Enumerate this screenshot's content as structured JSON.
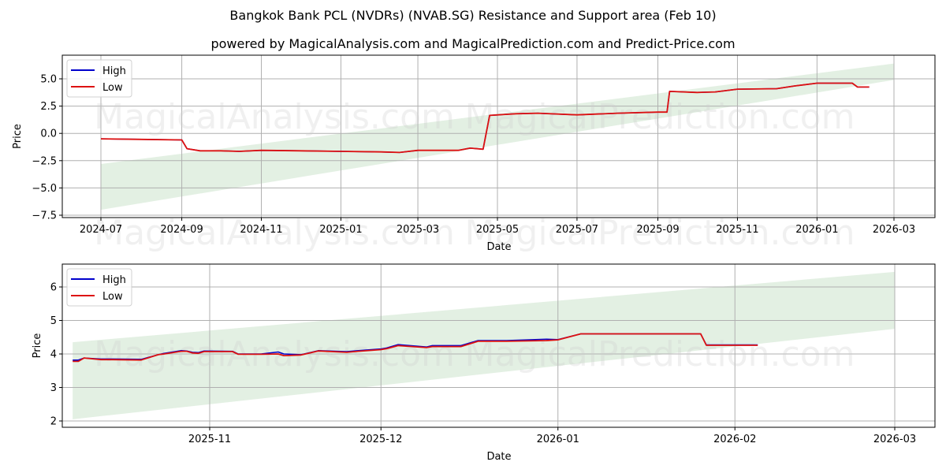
{
  "header": {
    "title": "Bangkok Bank PCL (NVDRs) (NVAB.SG) Resistance and Support area (Feb 10)",
    "subtitle": "powered by MagicalAnalysis.com and MagicalPrediction.com and Predict-Price.com"
  },
  "watermarks": [
    "MagicalAnalysis.com",
    "MagicalPrediction.com"
  ],
  "colors": {
    "high": "#0000cc",
    "low": "#dd1111",
    "band": "#d7ead7",
    "grid": "#b0b0b0"
  },
  "legend": {
    "high": "High",
    "low": "Low"
  },
  "chart_data": [
    {
      "type": "line",
      "title": "Bangkok Bank PCL (NVDRs) (NVAB.SG) Resistance and Support area (Feb 10)",
      "xlabel": "Date",
      "ylabel": "Price",
      "ylim": [
        -7.8,
        6.8
      ],
      "yticks": [
        "5.0",
        "2.5",
        "0.0",
        "−2.5",
        "−5.0",
        "−7.5"
      ],
      "xticks": [
        "2024-07",
        "2024-09",
        "2024-11",
        "2025-01",
        "2025-03",
        "2025-05",
        "2025-07",
        "2025-09",
        "2025-11",
        "2026-01",
        "2026-03"
      ],
      "grid": true,
      "legend_position": "upper left",
      "x": [
        "2024-07-01",
        "2024-08-01",
        "2024-09-01",
        "2024-09-05",
        "2024-09-15",
        "2024-10-01",
        "2024-10-15",
        "2024-11-01",
        "2024-12-01",
        "2025-01-01",
        "2025-02-01",
        "2025-02-15",
        "2025-03-01",
        "2025-04-01",
        "2025-04-10",
        "2025-04-20",
        "2025-04-25",
        "2025-05-15",
        "2025-06-01",
        "2025-07-01",
        "2025-08-01",
        "2025-09-01",
        "2025-09-08",
        "2025-09-10",
        "2025-10-01",
        "2025-10-15",
        "2025-11-01",
        "2025-12-01",
        "2025-12-15",
        "2026-01-01",
        "2026-01-28",
        "2026-02-01",
        "2026-02-10"
      ],
      "series": [
        {
          "name": "High",
          "values": [
            -0.5,
            -0.55,
            -0.6,
            -1.4,
            -1.6,
            -1.6,
            -1.65,
            -1.55,
            -1.6,
            -1.65,
            -1.7,
            -1.75,
            -1.55,
            -1.55,
            -1.35,
            -1.45,
            1.65,
            1.8,
            1.85,
            1.7,
            1.85,
            1.95,
            1.95,
            3.85,
            3.75,
            3.8,
            4.05,
            4.1,
            4.35,
            4.6,
            4.6,
            4.25,
            4.25
          ]
        },
        {
          "name": "Low",
          "values": [
            -0.5,
            -0.55,
            -0.6,
            -1.4,
            -1.6,
            -1.6,
            -1.65,
            -1.55,
            -1.6,
            -1.65,
            -1.7,
            -1.75,
            -1.55,
            -1.55,
            -1.35,
            -1.45,
            1.65,
            1.8,
            1.85,
            1.7,
            1.85,
            1.95,
            1.95,
            3.85,
            3.75,
            3.8,
            4.05,
            4.1,
            4.35,
            4.6,
            4.6,
            4.25,
            4.25
          ]
        }
      ],
      "band": {
        "start": "2024-07-01",
        "end": "2026-03-01",
        "lower": [
          -7.0,
          4.9
        ],
        "upper": [
          -2.8,
          6.4
        ]
      }
    },
    {
      "type": "line",
      "xlabel": "Date",
      "ylabel": "Price",
      "ylim": [
        1.8,
        6.65
      ],
      "yticks": [
        "6",
        "5",
        "4",
        "3",
        "2"
      ],
      "xticks": [
        "2025-11",
        "2025-12",
        "2026-01",
        "2026-02",
        "2026-03"
      ],
      "grid": true,
      "legend_position": "upper left",
      "x": [
        "2025-10-08",
        "2025-10-09",
        "2025-10-10",
        "2025-10-13",
        "2025-10-15",
        "2025-10-20",
        "2025-10-23",
        "2025-10-24",
        "2025-10-27",
        "2025-10-28",
        "2025-10-29",
        "2025-10-30",
        "2025-10-31",
        "2025-11-05",
        "2025-11-06",
        "2025-11-10",
        "2025-11-13",
        "2025-11-14",
        "2025-11-17",
        "2025-11-18",
        "2025-11-20",
        "2025-11-25",
        "2025-11-27",
        "2025-12-01",
        "2025-12-02",
        "2025-12-04",
        "2025-12-09",
        "2025-12-10",
        "2025-12-15",
        "2025-12-18",
        "2025-12-23",
        "2025-12-30",
        "2026-01-01",
        "2026-01-05",
        "2026-01-26",
        "2026-01-27",
        "2026-02-05"
      ],
      "series": [
        {
          "name": "High",
          "values": [
            3.82,
            3.82,
            3.88,
            3.85,
            3.85,
            3.84,
            3.98,
            4.02,
            4.1,
            4.09,
            4.05,
            4.04,
            4.09,
            4.08,
            4.0,
            4.0,
            4.06,
            4.0,
            3.98,
            4.02,
            4.1,
            4.07,
            4.1,
            4.15,
            4.18,
            4.28,
            4.21,
            4.25,
            4.25,
            4.4,
            4.4,
            4.44,
            4.43,
            4.6,
            4.6,
            4.27,
            4.27
          ]
        },
        {
          "name": "Low",
          "values": [
            3.78,
            3.78,
            3.88,
            3.83,
            3.83,
            3.82,
            3.98,
            4.0,
            4.08,
            4.08,
            4.03,
            4.02,
            4.07,
            4.07,
            3.99,
            3.99,
            4.0,
            3.95,
            3.97,
            4.01,
            4.09,
            4.05,
            4.08,
            4.13,
            4.16,
            4.25,
            4.19,
            4.22,
            4.22,
            4.38,
            4.38,
            4.4,
            4.42,
            4.6,
            4.6,
            4.26,
            4.26
          ]
        }
      ],
      "band": {
        "start": "2025-10-08",
        "end": "2026-03-01",
        "lower": [
          2.05,
          4.75
        ],
        "upper": [
          4.35,
          6.45
        ]
      }
    }
  ]
}
